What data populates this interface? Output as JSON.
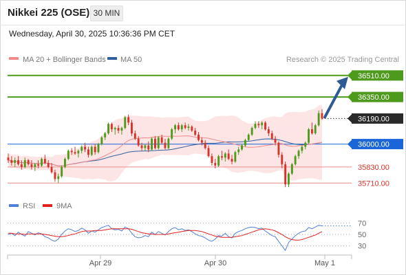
{
  "header": {
    "title": "Nikkei 225 (OSE)",
    "timeframe": "30 MIN",
    "datetime": "Wednesday, April 30, 2025 10:36:36 PM CET"
  },
  "legend": {
    "items": [
      {
        "label": "MA 20 + Bollinger Bands",
        "color": "#f08a8a"
      },
      {
        "label": "MA 50",
        "color": "#2f5f9e"
      }
    ],
    "credit": "Research © 2025 Trading Central"
  },
  "rsi_legend": {
    "items": [
      {
        "label": "RSI",
        "color": "#4f7fd8"
      },
      {
        "label": "9MA",
        "color": "#e02020"
      }
    ]
  },
  "colors": {
    "up": "#4e9a1d",
    "down": "#d8332a",
    "bands": "#fde0e0",
    "ma20": "#f08a8a",
    "ma50": "#2f5f9e",
    "resistance": "#4e9a1d",
    "pivot": "#1a66d9",
    "support": "#f08a8a",
    "arrow": "#2e5a95",
    "last_price": "#2a2a2a"
  },
  "chart_data": [
    {
      "type": "candlestick",
      "title": "Nikkei 225 (OSE)",
      "ylim": [
        35640,
        36560
      ],
      "x_ticks": [
        "Apr 29",
        "Apr 30",
        "May 1"
      ],
      "levels": [
        {
          "value": 36510.0,
          "label": "36510.00",
          "kind": "resistance"
        },
        {
          "value": 36350.0,
          "label": "36350.00",
          "kind": "resistance"
        },
        {
          "value": 36190.0,
          "label": "36190.00",
          "kind": "last"
        },
        {
          "value": 36000.0,
          "label": "36000.00",
          "kind": "pivot"
        },
        {
          "value": 35830.0,
          "label": "35830.00",
          "kind": "support"
        },
        {
          "value": 35710.0,
          "label": "35710.00",
          "kind": "support"
        }
      ],
      "candles": [
        [
          35900,
          35930,
          35860,
          35880
        ],
        [
          35880,
          35910,
          35840,
          35860
        ],
        [
          35860,
          35900,
          35830,
          35880
        ],
        [
          35880,
          35910,
          35840,
          35850
        ],
        [
          35850,
          35880,
          35810,
          35830
        ],
        [
          35830,
          35900,
          35820,
          35880
        ],
        [
          35880,
          35890,
          35840,
          35850
        ],
        [
          35850,
          35880,
          35810,
          35830
        ],
        [
          35830,
          35860,
          35800,
          35850
        ],
        [
          35850,
          35880,
          35820,
          35840
        ],
        [
          35840,
          35900,
          35830,
          35890
        ],
        [
          35890,
          35920,
          35850,
          35860
        ],
        [
          35860,
          35880,
          35820,
          35830
        ],
        [
          35830,
          35860,
          35780,
          35790
        ],
        [
          35790,
          35810,
          35720,
          35740
        ],
        [
          35740,
          35780,
          35710,
          35760
        ],
        [
          35760,
          35840,
          35750,
          35830
        ],
        [
          35830,
          35900,
          35820,
          35890
        ],
        [
          35890,
          35960,
          35880,
          35950
        ],
        [
          35950,
          35970,
          35920,
          35940
        ],
        [
          35940,
          35980,
          35920,
          35930
        ],
        [
          35930,
          35960,
          35900,
          35950
        ],
        [
          35950,
          35990,
          35930,
          35980
        ],
        [
          35980,
          36010,
          35940,
          35960
        ],
        [
          35960,
          35980,
          35900,
          35920
        ],
        [
          35920,
          35990,
          35910,
          35980
        ],
        [
          35980,
          36000,
          35920,
          35940
        ],
        [
          35940,
          36010,
          35930,
          36000
        ],
        [
          36000,
          36060,
          35990,
          36050
        ],
        [
          36050,
          36090,
          36030,
          36080
        ],
        [
          36080,
          36160,
          36070,
          36150
        ],
        [
          36150,
          36160,
          36090,
          36110
        ],
        [
          36110,
          36130,
          36070,
          36120
        ],
        [
          36120,
          36140,
          36080,
          36100
        ],
        [
          36100,
          36130,
          36070,
          36120
        ],
        [
          36120,
          36210,
          36110,
          36200
        ],
        [
          36200,
          36220,
          36140,
          36160
        ],
        [
          36160,
          36180,
          36060,
          36080
        ],
        [
          36080,
          36100,
          36030,
          36040
        ],
        [
          36040,
          36060,
          35980,
          35990
        ],
        [
          35990,
          36010,
          35950,
          35970
        ],
        [
          35970,
          36000,
          35950,
          35990
        ],
        [
          35990,
          36020,
          35940,
          35960
        ],
        [
          35960,
          36050,
          35950,
          36040
        ],
        [
          36040,
          36060,
          35960,
          35970
        ],
        [
          35970,
          36060,
          35960,
          36050
        ],
        [
          36050,
          36070,
          36000,
          36010
        ],
        [
          36010,
          36040,
          35960,
          35970
        ],
        [
          35970,
          36050,
          35960,
          36040
        ],
        [
          36040,
          36120,
          36030,
          36110
        ],
        [
          36110,
          36150,
          36080,
          36140
        ],
        [
          36140,
          36160,
          36100,
          36110
        ],
        [
          36110,
          36150,
          36090,
          36140
        ],
        [
          36140,
          36160,
          36110,
          36120
        ],
        [
          36120,
          36150,
          36100,
          36130
        ],
        [
          36130,
          36140,
          36090,
          36100
        ],
        [
          36100,
          36120,
          36060,
          36070
        ],
        [
          36070,
          36090,
          36020,
          36030
        ],
        [
          36030,
          36050,
          35990,
          36010
        ],
        [
          36010,
          36030,
          35960,
          35970
        ],
        [
          35970,
          35990,
          35900,
          35910
        ],
        [
          35910,
          35930,
          35840,
          35860
        ],
        [
          35860,
          35890,
          35820,
          35840
        ],
        [
          35840,
          35920,
          35830,
          35910
        ],
        [
          35910,
          35950,
          35880,
          35900
        ],
        [
          35900,
          35940,
          35870,
          35930
        ],
        [
          35930,
          35960,
          35880,
          35890
        ],
        [
          35890,
          35920,
          35850,
          35870
        ],
        [
          35870,
          35950,
          35860,
          35940
        ],
        [
          35940,
          35980,
          35920,
          35960
        ],
        [
          35960,
          36000,
          35950,
          35990
        ],
        [
          35990,
          36040,
          35980,
          36030
        ],
        [
          36030,
          36080,
          36020,
          36070
        ],
        [
          36070,
          36130,
          36060,
          36120
        ],
        [
          36120,
          36170,
          36110,
          36150
        ],
        [
          36150,
          36170,
          36120,
          36140
        ],
        [
          36140,
          36170,
          36110,
          36160
        ],
        [
          36160,
          36170,
          36100,
          36110
        ],
        [
          36110,
          36130,
          36060,
          36080
        ],
        [
          36080,
          36100,
          36030,
          36040
        ],
        [
          36040,
          36060,
          35990,
          36010
        ],
        [
          36010,
          36020,
          35900,
          35920
        ],
        [
          35920,
          35940,
          35820,
          35850
        ],
        [
          35850,
          35870,
          35680,
          35700
        ],
        [
          35700,
          35790,
          35680,
          35780
        ],
        [
          35780,
          35860,
          35770,
          35850
        ],
        [
          35850,
          35920,
          35840,
          35910
        ],
        [
          35910,
          35960,
          35890,
          35950
        ],
        [
          35950,
          35990,
          35930,
          35980
        ],
        [
          35980,
          36020,
          35960,
          36010
        ],
        [
          36010,
          36120,
          36000,
          36110
        ],
        [
          36110,
          36160,
          36070,
          36080
        ],
        [
          36080,
          36150,
          36070,
          36140
        ],
        [
          36140,
          36250,
          36130,
          36230
        ],
        [
          36230,
          36260,
          36180,
          36190
        ]
      ]
    },
    {
      "type": "line",
      "title": "RSI",
      "ylim": [
        20,
        80
      ],
      "y_ticks": [
        70,
        50,
        30
      ],
      "series": [
        {
          "name": "RSI",
          "values": [
            50,
            52,
            48,
            54,
            50,
            47,
            55,
            52,
            49,
            53,
            51,
            46,
            44,
            40,
            38,
            42,
            50,
            56,
            60,
            58,
            55,
            57,
            61,
            58,
            52,
            56,
            54,
            58,
            62,
            64,
            66,
            60,
            58,
            59,
            56,
            63,
            60,
            52,
            46,
            44,
            45,
            48,
            46,
            54,
            50,
            55,
            52,
            49,
            55,
            60,
            62,
            58,
            60,
            57,
            58,
            55,
            51,
            48,
            47,
            44,
            40,
            38,
            42,
            48,
            47,
            52,
            46,
            44,
            52,
            55,
            57,
            60,
            62,
            63,
            62,
            60,
            61,
            56,
            52,
            48,
            46,
            38,
            30,
            22,
            36,
            42,
            48,
            52,
            55,
            56,
            62,
            60,
            63,
            66,
            65
          ]
        },
        {
          "name": "9MA",
          "values": [
            52,
            52,
            51,
            51,
            51,
            50,
            51,
            51,
            51,
            51,
            51,
            50,
            49,
            48,
            47,
            46,
            46,
            47,
            48,
            50,
            51,
            53,
            55,
            56,
            56,
            56,
            57,
            57,
            57,
            58,
            59,
            60,
            60,
            60,
            60,
            60,
            60,
            59,
            57,
            55,
            53,
            52,
            51,
            51,
            50,
            50,
            50,
            50,
            51,
            52,
            53,
            54,
            55,
            56,
            57,
            57,
            57,
            56,
            55,
            53,
            51,
            49,
            47,
            46,
            45,
            45,
            45,
            45,
            46,
            47,
            48,
            50,
            52,
            54,
            56,
            58,
            59,
            60,
            59,
            58,
            56,
            53,
            50,
            46,
            43,
            41,
            40,
            40,
            41,
            43,
            45,
            47,
            49,
            52,
            55
          ]
        }
      ]
    }
  ]
}
